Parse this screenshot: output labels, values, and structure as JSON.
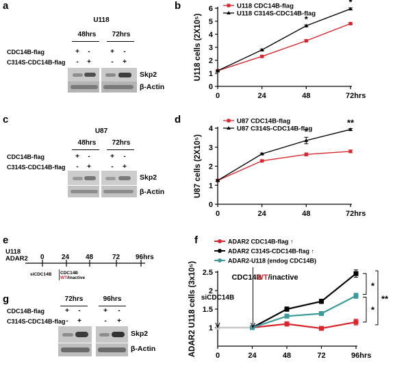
{
  "panels": {
    "a": {
      "letter": "a",
      "cell_line": "U118",
      "times": [
        "48hrs",
        "72hrs"
      ],
      "rows": [
        {
          "label": "CDC14B-flag",
          "signs": [
            "+",
            "-",
            "+",
            "-"
          ]
        },
        {
          "label": "C314S-CDC14B-flag",
          "signs": [
            "-",
            "+",
            "-",
            "+"
          ]
        }
      ],
      "blots": [
        "Skp2",
        "β-Actin"
      ]
    },
    "c": {
      "letter": "c",
      "cell_line": "U87",
      "times": [
        "48hrs",
        "72hrs"
      ],
      "rows": [
        {
          "label": "CDC14B-flag",
          "signs": [
            "+",
            "-",
            "+",
            "-"
          ]
        },
        {
          "label": "C314S-CDC14B-flag",
          "signs": [
            "-",
            "+",
            "-",
            "+"
          ]
        }
      ],
      "blots": [
        "Skp2",
        "β-Actin"
      ]
    },
    "e": {
      "letter": "e",
      "cell_line": "U118",
      "line2": "ADAR2",
      "ticks": [
        "0",
        "24",
        "48",
        "72",
        "96hrs"
      ],
      "note_si": "siCDC14B",
      "note_cdc": "CDC14B",
      "note_wt": "WT",
      "note_inactive": "/inactive"
    },
    "g": {
      "letter": "g",
      "times": [
        "72hrs",
        "96hrs"
      ],
      "rows": [
        {
          "label": "CDC14B-flag",
          "signs": [
            "+",
            "-",
            "+",
            "-"
          ]
        },
        {
          "label": "C314S-CDC14B-flag",
          "signs": [
            "-",
            "+",
            "-",
            "+"
          ]
        }
      ],
      "blots": [
        "Skp2",
        "β-Actin"
      ]
    }
  },
  "chart_data": [
    {
      "panel": "b",
      "type": "line",
      "x": [
        0,
        24,
        48,
        72
      ],
      "x_tick_labels": [
        "0",
        "24",
        "48",
        "72hrs"
      ],
      "ylabel": "U118 cells (2X10⁵)",
      "ylim": [
        0,
        6
      ],
      "y_ticks": [
        0,
        1,
        2,
        3,
        4,
        5,
        6
      ],
      "legend_position": "top-left",
      "series": [
        {
          "name": "U118 CDC14B-flag",
          "color": "#d9262e",
          "values": [
            1.2,
            2.3,
            3.5,
            4.82
          ],
          "errors": [
            0.05,
            0.05,
            0.05,
            0.05
          ]
        },
        {
          "name": "U118 C314S-CDC14B-flag",
          "color": "#000000",
          "values": [
            1.2,
            2.8,
            4.65,
            5.95
          ],
          "errors": [
            0.05,
            0.06,
            0.07,
            0.07
          ]
        }
      ],
      "annotations": [
        {
          "x": 48,
          "text": "*"
        },
        {
          "x": 72,
          "text": "*"
        }
      ]
    },
    {
      "panel": "d",
      "type": "line",
      "x": [
        0,
        24,
        48,
        72
      ],
      "x_tick_labels": [
        "0",
        "24",
        "48",
        "72hrs"
      ],
      "ylabel": "U87 cells (2X10⁵)",
      "ylim": [
        0,
        4
      ],
      "y_ticks": [
        0,
        1,
        2,
        3,
        4
      ],
      "legend_position": "top-left",
      "series": [
        {
          "name": "U87 CDC14B-flag",
          "color": "#d9262e",
          "values": [
            1.25,
            2.28,
            2.62,
            2.78
          ],
          "errors": [
            0.04,
            0.04,
            0.08,
            0.07
          ]
        },
        {
          "name": "U87 C314S-CDC14B-flag",
          "color": "#000000",
          "values": [
            1.25,
            2.65,
            3.35,
            3.93
          ],
          "errors": [
            0.04,
            0.04,
            0.17,
            0.05
          ]
        }
      ],
      "annotations": [
        {
          "x": 48,
          "text": "*"
        },
        {
          "x": 72,
          "text": "**"
        }
      ]
    },
    {
      "panel": "f",
      "type": "line",
      "x": [
        0,
        24,
        48,
        72,
        96
      ],
      "x_tick_labels": [
        "0",
        "24",
        "48",
        "72",
        "96hrs"
      ],
      "ylabel": "ADAR2 U118 cells (3x10⁵)",
      "ylim": [
        0.5,
        2.5
      ],
      "y_ticks": [
        1,
        1.5,
        2,
        2.5
      ],
      "legend_position": "top-left",
      "series": [
        {
          "name": "ADAR2 CDC14B-flag",
          "legend_suffix": "↑",
          "color": "#d9262e",
          "values": [
            1.0,
            1.0,
            1.1,
            0.98,
            1.15
          ],
          "errors": [
            0,
            0.04,
            0.06,
            0.03,
            0.08
          ]
        },
        {
          "name": "ADAR2 C314S-CDC14B-flag",
          "legend_suffix": "↑",
          "color": "#000000",
          "values": [
            1.0,
            1.0,
            1.5,
            1.71,
            2.46
          ],
          "errors": [
            0,
            0.04,
            0.06,
            0.06,
            0.1
          ]
        },
        {
          "name": "ADAR2-U118 (endog CDC14B)",
          "legend_suffix": "",
          "color": "#3d9a9a",
          "values": [
            1.0,
            1.0,
            1.31,
            1.38,
            1.86
          ],
          "errors": [
            0,
            0.04,
            0.05,
            0.05,
            0.07
          ]
        }
      ],
      "pre_segment_color": "#c8c8c8",
      "event_labels": [
        {
          "x": 0,
          "text": "siCDC14B"
        },
        {
          "x": 24,
          "text": "CDC14B",
          "text2": "WT",
          "text3": "/inactive"
        }
      ],
      "brackets": [
        "*",
        "*",
        "**"
      ]
    }
  ]
}
